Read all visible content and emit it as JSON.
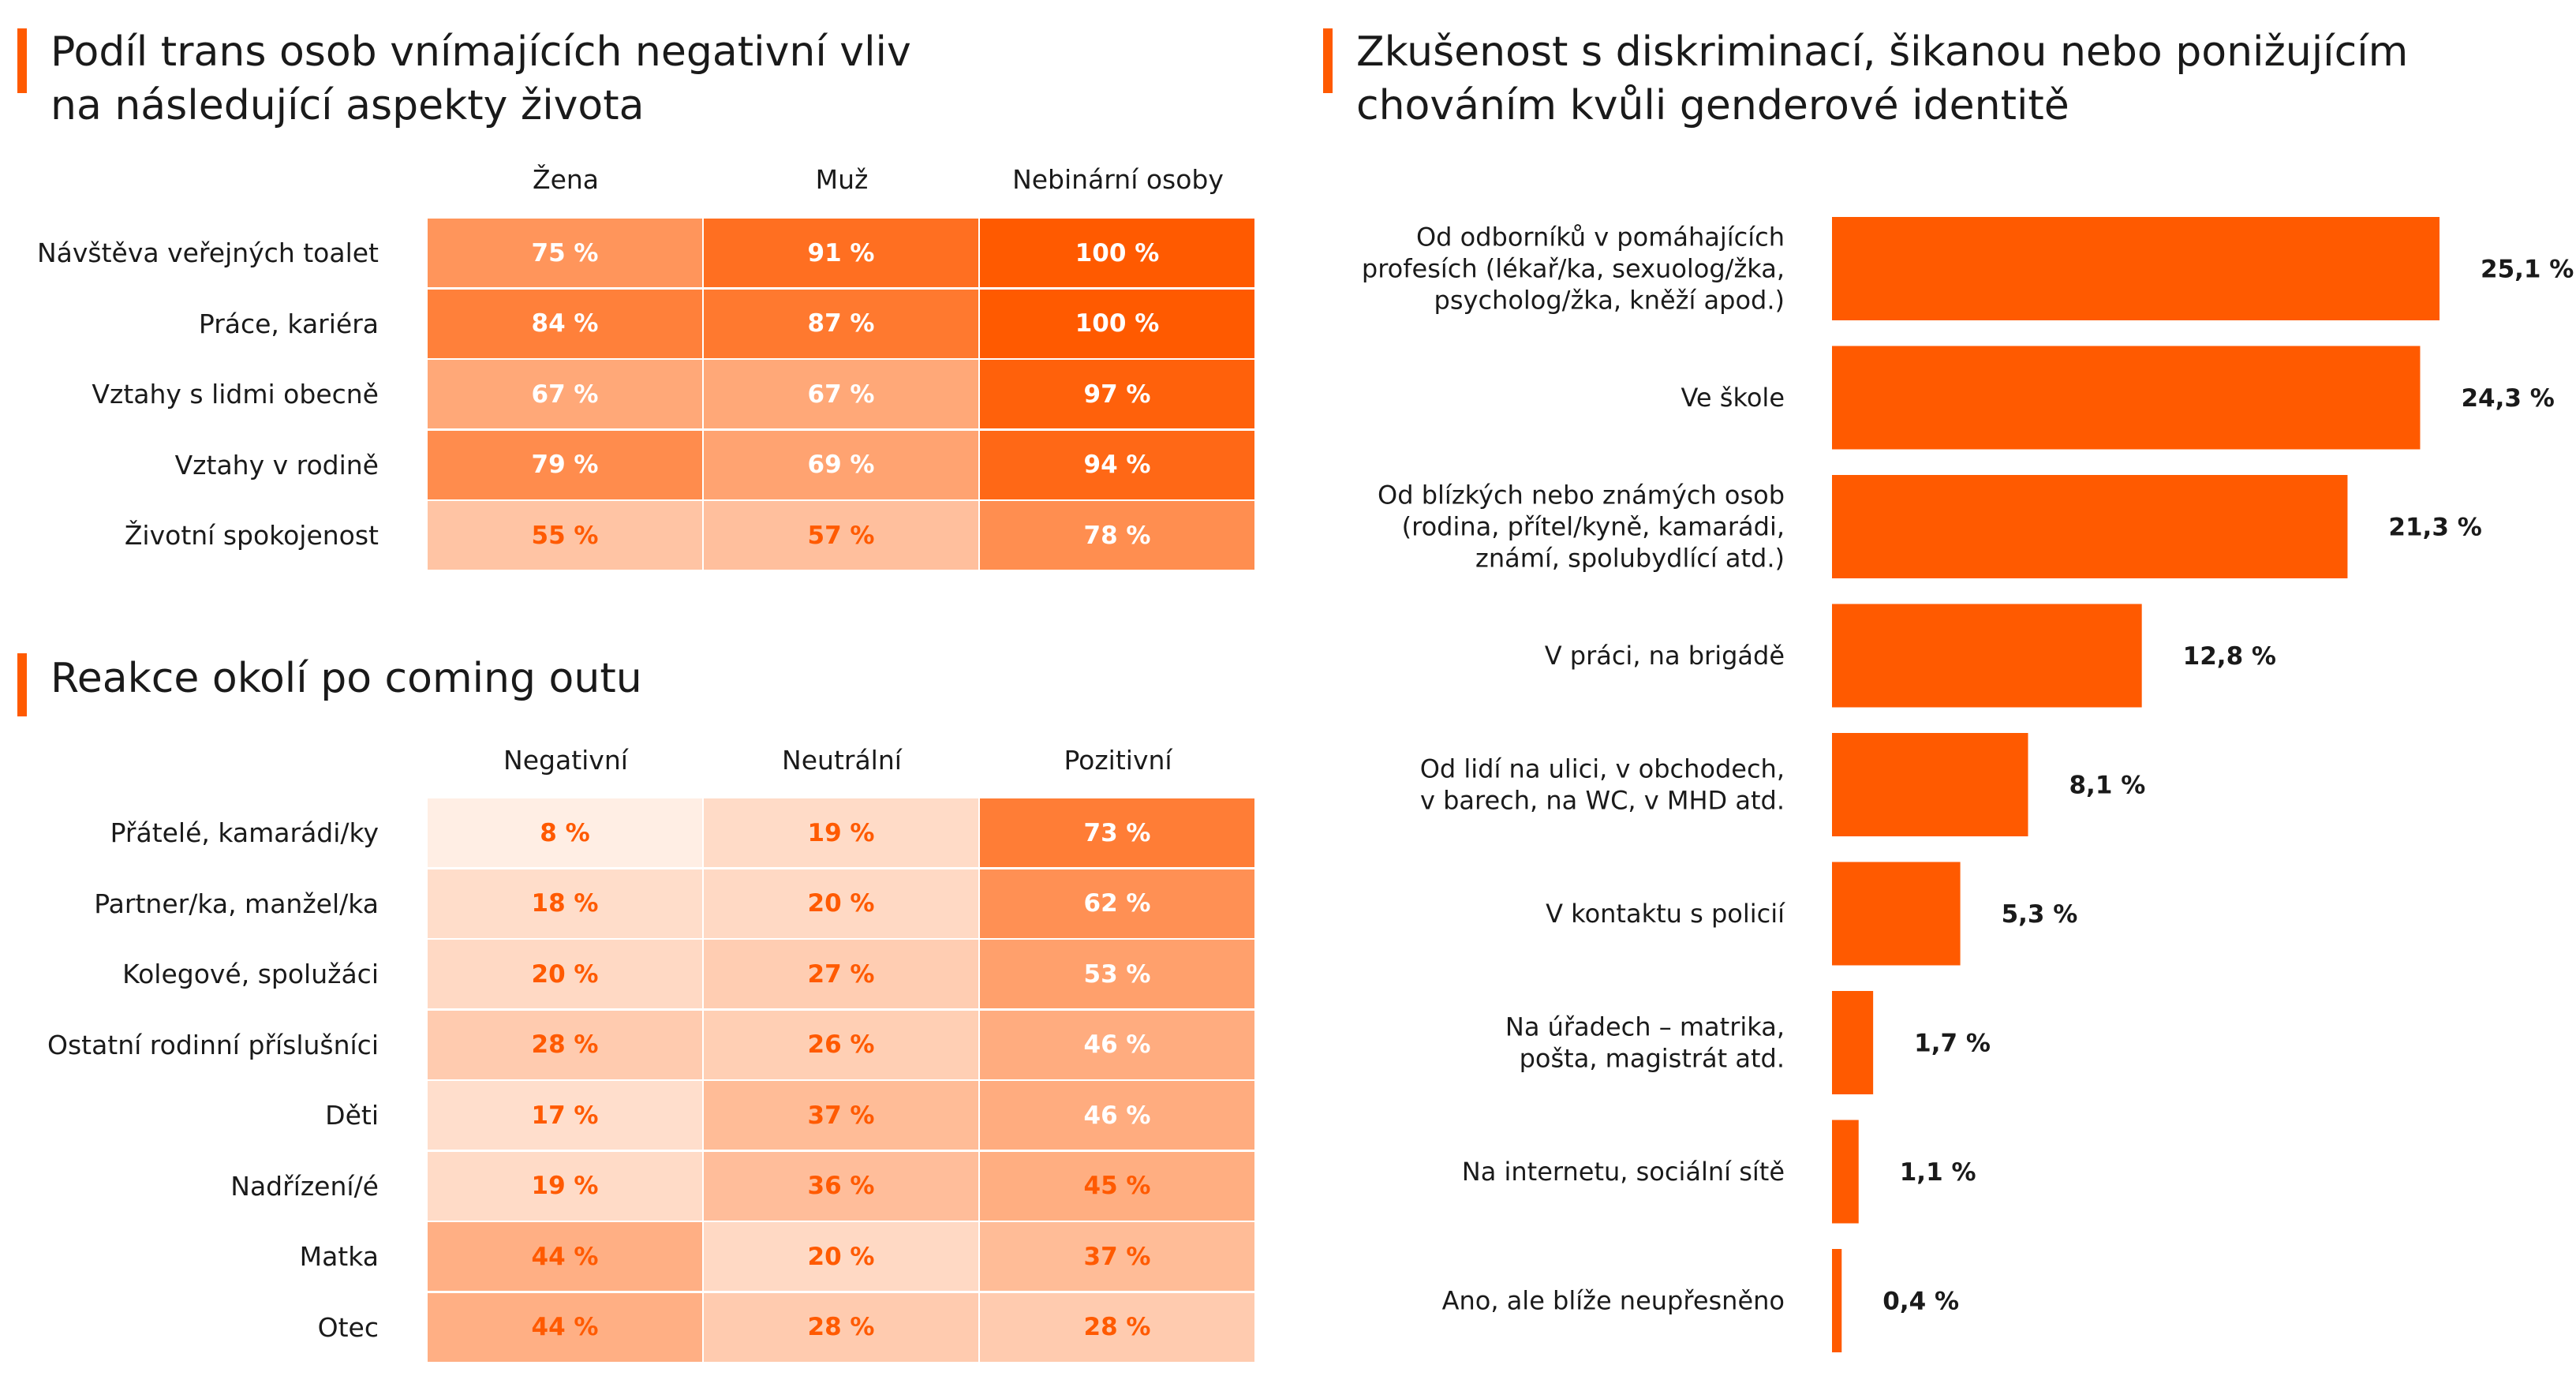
{
  "table1": {
    "title_line1": "Podíl trans osob vnímajících negativní vliv",
    "title_line2": "na následující aspekty života",
    "columns": [
      "Žena",
      "Muž",
      "Nebinární osoby"
    ],
    "rows": [
      {
        "label": "Návštěva veřejných toalet",
        "values": [
          "75 %",
          "91 %",
          "100 %"
        ]
      },
      {
        "label": "Práce, kariéra",
        "values": [
          "84 %",
          "87 %",
          "100 %"
        ]
      },
      {
        "label": "Vztahy s lidmi obecně",
        "values": [
          "67 %",
          "67 %",
          "97 %"
        ]
      },
      {
        "label": "Vztahy v rodině",
        "values": [
          "79 %",
          "69 %",
          "94 %"
        ]
      },
      {
        "label": "Životní spokojenost",
        "values": [
          "55 %",
          "57 %",
          "78 %"
        ]
      }
    ]
  },
  "table2": {
    "title": "Reakce okolí po coming outu",
    "columns": [
      "Negativní",
      "Neutrální",
      "Pozitivní"
    ],
    "rows": [
      {
        "label": "Přátelé, kamarádi/ky",
        "values": [
          "8 %",
          "19 %",
          "73 %"
        ]
      },
      {
        "label": "Partner/ka, manžel/ka",
        "values": [
          "18 %",
          "20 %",
          "62 %"
        ]
      },
      {
        "label": "Kolegové, spolužáci",
        "values": [
          "20 %",
          "27 %",
          "53 %"
        ]
      },
      {
        "label": "Ostatní rodinní příslušníci",
        "values": [
          "28 %",
          "26 %",
          "46 %"
        ]
      },
      {
        "label": "Děti",
        "values": [
          "17 %",
          "37 %",
          "46 %"
        ]
      },
      {
        "label": "Nadřízení/é",
        "values": [
          "19 %",
          "36 %",
          "45 %"
        ]
      },
      {
        "label": "Matka",
        "values": [
          "44 %",
          "20 %",
          "37 %"
        ]
      },
      {
        "label": "Otec",
        "values": [
          "44 %",
          "28 %",
          "28 %"
        ]
      }
    ]
  },
  "chart_data": {
    "type": "bar",
    "orientation": "horizontal",
    "title": "Zkušenost s diskriminací, šikanou nebo ponižujícím chováním kvůli genderové identitě",
    "title_line1": "Zkušenost s diskriminací, šikanou nebo ponižujícím",
    "title_line2": "chováním kvůli genderové identitě",
    "categories": [
      [
        "Od odborníků v pomáhajících",
        "profesích (lékař/ka, sexuolog/žka,",
        "psycholog/žka, kněží apod.)"
      ],
      [
        "Ve škole"
      ],
      [
        "Od blízkých nebo známých osob",
        "(rodina, přítel/kyně, kamarádi,",
        "známí, spolubydlící atd.)"
      ],
      [
        "V práci, na brigádě"
      ],
      [
        "Od lidí na ulici, v obchodech,",
        "v barech, na WC, v MHD atd."
      ],
      [
        "V kontaktu s policií"
      ],
      [
        "Na úřadech – matrika,",
        "pošta, magistrát atd."
      ],
      [
        "Na internetu, sociální sítě"
      ],
      [
        "Ano, ale blíže neupřesněno"
      ]
    ],
    "values": [
      25.1,
      24.3,
      21.3,
      12.8,
      8.1,
      5.3,
      1.7,
      1.1,
      0.4
    ],
    "value_labels": [
      "25,1 %",
      "24,3 %",
      "21,3 %",
      "12,8 %",
      "8,1 %",
      "5,3 %",
      "1,7 %",
      "1,1 %",
      "0,4 %"
    ],
    "bar_color": "#ff5a00",
    "xlim": [
      0,
      25.1
    ]
  },
  "colors": {
    "accent": "#ff5a00",
    "heat_max": "#ff5a00",
    "heat_min": "#ffffff"
  }
}
